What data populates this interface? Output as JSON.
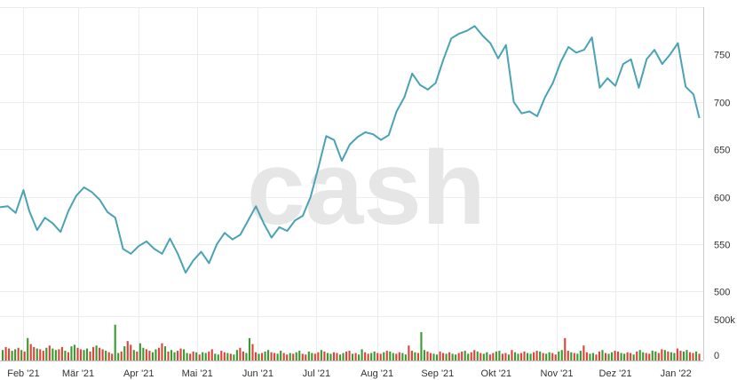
{
  "watermark": "cash",
  "chart_data": [
    {
      "type": "line",
      "panel": "price",
      "color": "#4aa3b5",
      "x_ticks": [
        "Feb '21",
        "Mär '21",
        "Apr '21",
        "Mai '21",
        "Jun '21",
        "Jul '21",
        "Aug '21",
        "Sep '21",
        "Okt '21",
        "Nov '21",
        "Dez '21",
        "Jan '22"
      ],
      "y_ticks": [
        "500",
        "550",
        "600",
        "650",
        "700",
        "750"
      ],
      "ylim": [
        478,
        800
      ],
      "grid": true,
      "x": [
        "2021-01-20",
        "2021-01-24",
        "2021-01-28",
        "2021-02-01",
        "2021-02-04",
        "2021-02-08",
        "2021-02-12",
        "2021-02-16",
        "2021-02-20",
        "2021-02-24",
        "2021-02-28",
        "2021-03-04",
        "2021-03-08",
        "2021-03-12",
        "2021-03-16",
        "2021-03-20",
        "2021-03-24",
        "2021-03-28",
        "2021-04-01",
        "2021-04-05",
        "2021-04-09",
        "2021-04-13",
        "2021-04-17",
        "2021-04-21",
        "2021-04-25",
        "2021-04-29",
        "2021-05-03",
        "2021-05-07",
        "2021-05-11",
        "2021-05-15",
        "2021-05-19",
        "2021-05-23",
        "2021-05-27",
        "2021-05-31",
        "2021-06-04",
        "2021-06-08",
        "2021-06-12",
        "2021-06-16",
        "2021-06-20",
        "2021-06-24",
        "2021-06-28",
        "2021-07-02",
        "2021-07-06",
        "2021-07-10",
        "2021-07-14",
        "2021-07-18",
        "2021-07-22",
        "2021-07-26",
        "2021-07-30",
        "2021-08-03",
        "2021-08-07",
        "2021-08-11",
        "2021-08-15",
        "2021-08-19",
        "2021-08-23",
        "2021-08-27",
        "2021-08-31",
        "2021-09-04",
        "2021-09-08",
        "2021-09-12",
        "2021-09-16",
        "2021-09-20",
        "2021-09-24",
        "2021-09-28",
        "2021-10-02",
        "2021-10-06",
        "2021-10-10",
        "2021-10-14",
        "2021-10-18",
        "2021-10-22",
        "2021-10-26",
        "2021-10-30",
        "2021-11-03",
        "2021-11-07",
        "2021-11-11",
        "2021-11-15",
        "2021-11-19",
        "2021-11-23",
        "2021-11-27",
        "2021-12-01",
        "2021-12-05",
        "2021-12-09",
        "2021-12-13",
        "2021-12-17",
        "2021-12-21",
        "2021-12-25",
        "2021-12-29",
        "2022-01-02",
        "2022-01-06",
        "2022-01-10",
        "2022-01-13"
      ],
      "values": [
        589,
        590,
        583,
        607,
        585,
        565,
        578,
        572,
        563,
        585,
        601,
        610,
        605,
        597,
        584,
        578,
        545,
        540,
        548,
        553,
        545,
        540,
        556,
        540,
        520,
        533,
        542,
        530,
        550,
        562,
        555,
        560,
        575,
        590,
        572,
        557,
        568,
        564,
        575,
        580,
        600,
        631,
        664,
        660,
        638,
        655,
        663,
        668,
        666,
        660,
        665,
        690,
        705,
        730,
        718,
        713,
        720,
        745,
        767,
        772,
        775,
        780,
        770,
        762,
        746,
        760,
        700,
        688,
        690,
        685,
        705,
        720,
        742,
        758,
        752,
        755,
        768,
        715,
        725,
        717,
        740,
        745,
        715,
        745,
        755,
        740,
        750,
        762,
        716,
        708,
        683
      ]
    },
    {
      "type": "bar",
      "panel": "volume",
      "colors": {
        "up": "#3b9a2e",
        "down": "#d9453a"
      },
      "y_ticks": [
        "0",
        "500k"
      ],
      "ylim": [
        0,
        500000
      ],
      "values": [
        140000,
        180000,
        160000,
        130000,
        150000,
        170000,
        140000,
        120000,
        300000,
        220000,
        180000,
        160000,
        150000,
        130000,
        170000,
        200000,
        160000,
        140000,
        150000,
        180000,
        130000,
        110000,
        190000,
        210000,
        170000,
        150000,
        140000,
        160000,
        120000,
        180000,
        200000,
        170000,
        150000,
        130000,
        110000,
        90000,
        480000,
        100000,
        120000,
        190000,
        260000,
        210000,
        140000,
        120000,
        230000,
        170000,
        150000,
        130000,
        110000,
        150000,
        170000,
        230000,
        190000,
        120000,
        140000,
        110000,
        130000,
        160000,
        150000,
        100000,
        90000,
        120000,
        110000,
        80000,
        110000,
        100000,
        120000,
        150000,
        90000,
        80000,
        130000,
        110000,
        100000,
        90000,
        80000,
        140000,
        170000,
        120000,
        100000,
        300000,
        220000,
        110000,
        90000,
        100000,
        120000,
        140000,
        110000,
        100000,
        90000,
        130000,
        100000,
        80000,
        100000,
        90000,
        110000,
        130000,
        90000,
        80000,
        120000,
        100000,
        90000,
        110000,
        140000,
        120000,
        100000,
        90000,
        110000,
        100000,
        80000,
        100000,
        120000,
        130000,
        90000,
        100000,
        80000,
        150000,
        110000,
        90000,
        100000,
        120000,
        100000,
        90000,
        110000,
        130000,
        120000,
        100000,
        90000,
        110000,
        100000,
        80000,
        200000,
        130000,
        110000,
        100000,
        380000,
        140000,
        120000,
        100000,
        90000,
        80000,
        120000,
        100000,
        90000,
        110000,
        90000,
        80000,
        100000,
        120000,
        130000,
        90000,
        110000,
        140000,
        120000,
        100000,
        90000,
        110000,
        80000,
        100000,
        120000,
        130000,
        90000,
        100000,
        80000,
        140000,
        110000,
        90000,
        100000,
        120000,
        100000,
        90000,
        110000,
        130000,
        120000,
        100000,
        90000,
        110000,
        100000,
        80000,
        120000,
        140000,
        300000,
        130000,
        110000,
        100000,
        90000,
        130000,
        200000,
        110000,
        90000,
        100000,
        80000,
        120000,
        140000,
        100000,
        90000,
        110000,
        130000,
        120000,
        100000,
        90000,
        110000,
        100000,
        80000,
        120000,
        140000,
        110000,
        100000,
        90000,
        130000,
        120000,
        100000,
        150000,
        140000,
        120000,
        110000,
        100000,
        160000,
        130000,
        120000,
        140000,
        110000,
        100000,
        120000,
        90000
      ],
      "directions": "udduudududdudduduudduduudduudduddudduududduduudduudduduudduudduduudduudduduudduudduduudduudduduudduudduduudduudduduudduudduduudduudduduudduudduduudduudduduudduudduduudduudduduudduudduduudduudduduudduudduduudduudduduudduudduduudduuddudu"
    }
  ]
}
